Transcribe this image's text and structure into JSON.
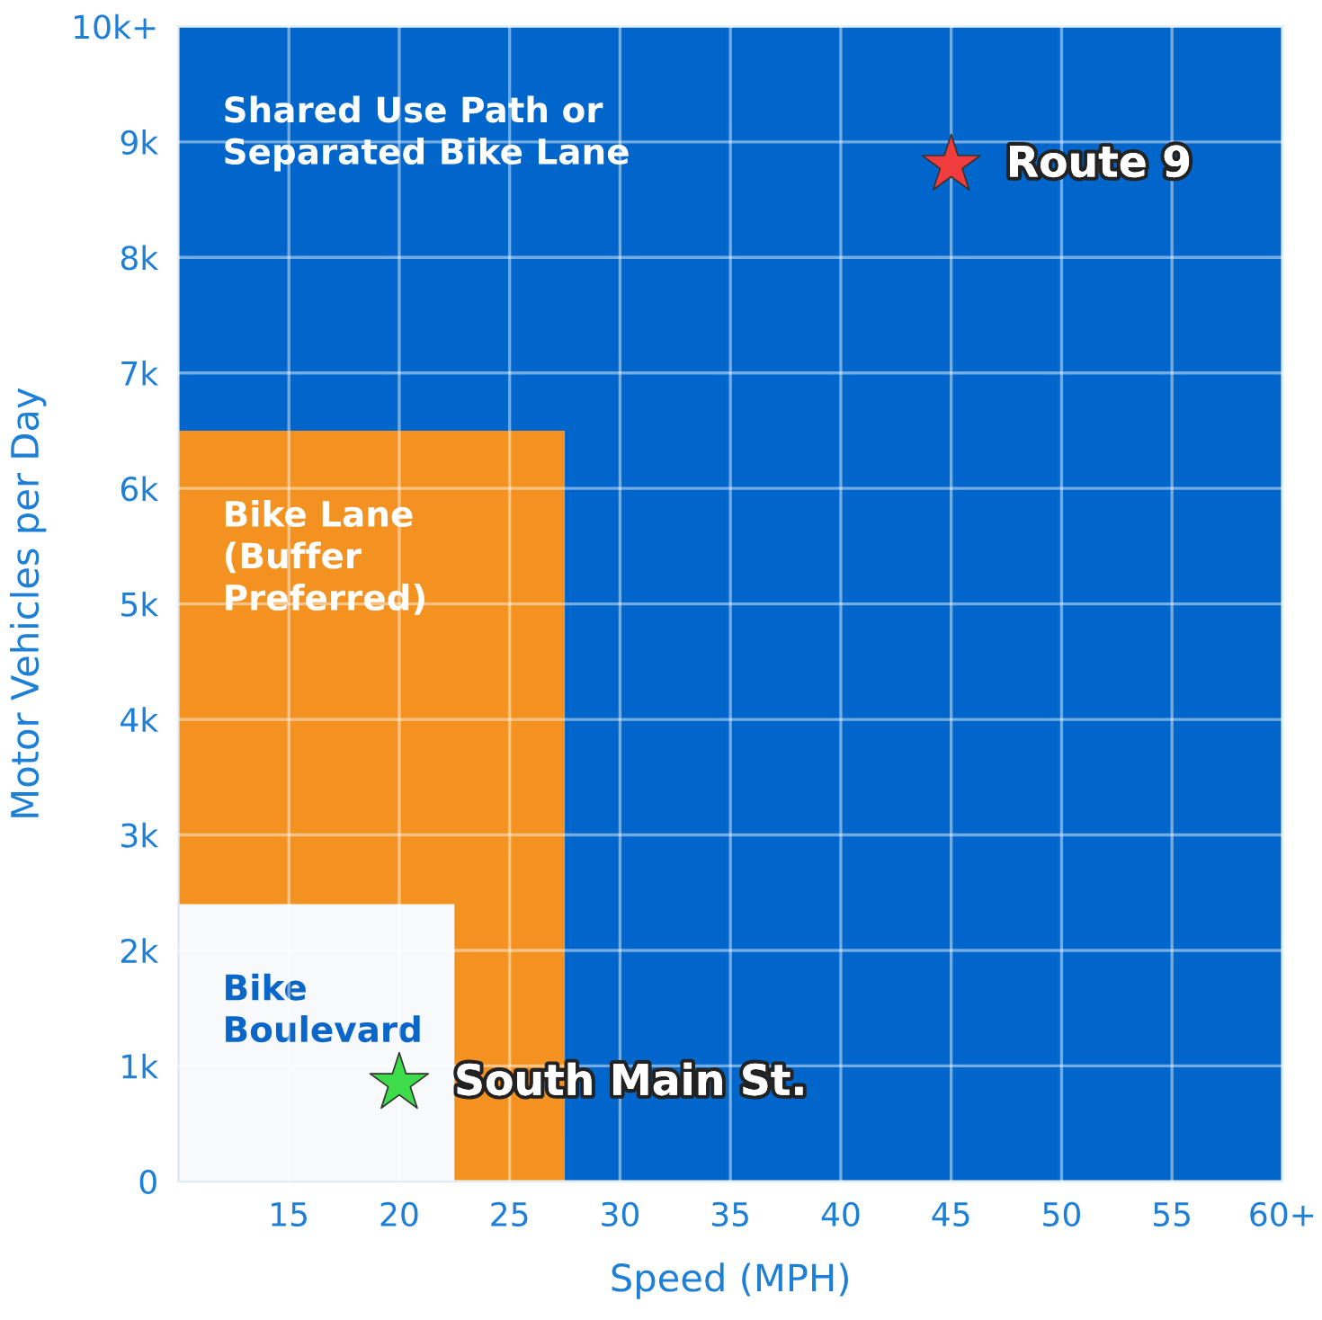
{
  "chart_data": {
    "type": "area",
    "stacked": true,
    "xlabel": "Speed (MPH)",
    "ylabel": "Motor Vehicles per Day",
    "xlim": [
      10,
      60
    ],
    "ylim": [
      0,
      10000
    ],
    "xticks": [
      15,
      20,
      25,
      30,
      35,
      40,
      45,
      50,
      55,
      {
        "value": 60,
        "label": "60+"
      }
    ],
    "yticks": [
      0,
      {
        "value": 1000,
        "label": "1k"
      },
      {
        "value": 2000,
        "label": "2k"
      },
      {
        "value": 3000,
        "label": "3k"
      },
      {
        "value": 4000,
        "label": "4k"
      },
      {
        "value": 5000,
        "label": "5k"
      },
      {
        "value": 6000,
        "label": "6k"
      },
      {
        "value": 7000,
        "label": "7k"
      },
      {
        "value": 8000,
        "label": "8k"
      },
      {
        "value": 9000,
        "label": "9k"
      },
      {
        "value": 10000,
        "label": "10k+"
      }
    ],
    "grid": true,
    "x": [
      10,
      22.5,
      22.5,
      27.5,
      27.5,
      60
    ],
    "series": [
      {
        "name": "Bike\nBoulevard",
        "color": "#f7f9fb",
        "values": [
          2400,
          2400,
          0,
          0,
          0,
          0
        ]
      },
      {
        "name": "Bike Lane\n(Buffer\nPreferred)",
        "color": "#f39220",
        "values": [
          4100,
          4100,
          6500,
          6500,
          0,
          0
        ]
      },
      {
        "name": "Shared Use Path or\nSeparated Bike Lane",
        "color": "#0066cc",
        "values": [
          3500,
          3500,
          3500,
          3500,
          10000,
          10000
        ]
      },
      {
        "type": "scatter",
        "marker": "star",
        "x": [
          45,
          20
        ],
        "values": [
          8800,
          850
        ],
        "colors": [
          "#f03c3c",
          "#3ddc4a"
        ]
      }
    ],
    "annotations": [
      {
        "text": "Route 9",
        "x": 45,
        "y": 8800
      },
      {
        "text": "South Main St.",
        "x": 20,
        "y": 850
      }
    ]
  }
}
